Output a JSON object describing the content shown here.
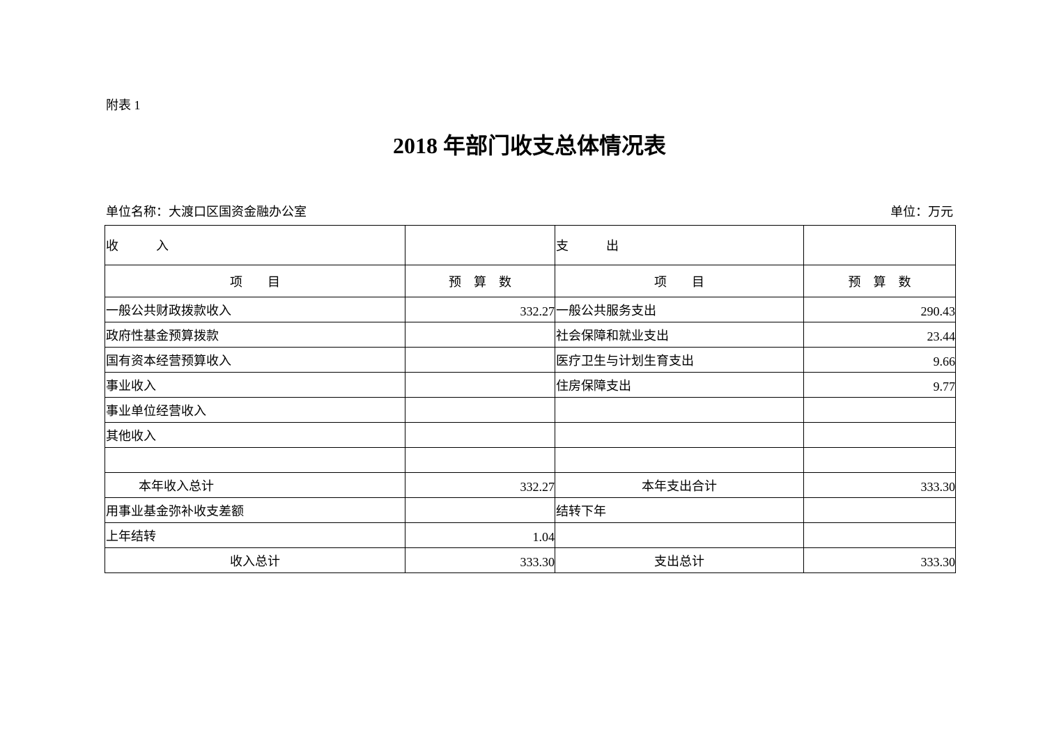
{
  "annex_label": "附表 1",
  "title": "2018 年部门收支总体情况表",
  "unit_name": "单位名称：大渡口区国资金融办公室",
  "unit": "单位：万元",
  "header": {
    "income": "收            入",
    "expense": "支            出",
    "item": "项        目",
    "budget": "预    算    数"
  },
  "rows": [
    {
      "income_item": "一般公共财政拨款收入",
      "income_value": "332.27",
      "expense_item": "一般公共服务支出",
      "expense_value": "290.43"
    },
    {
      "income_item": "政府性基金预算拨款",
      "income_value": "",
      "expense_item": "社会保障和就业支出",
      "expense_value": "23.44"
    },
    {
      "income_item": "国有资本经营预算收入",
      "income_value": "",
      "expense_item": "医疗卫生与计划生育支出",
      "expense_value": "9.66"
    },
    {
      "income_item": "事业收入",
      "income_value": "",
      "expense_item": "住房保障支出",
      "expense_value": "9.77"
    },
    {
      "income_item": "事业单位经营收入",
      "income_value": "",
      "expense_item": "",
      "expense_value": ""
    },
    {
      "income_item": "其他收入",
      "income_value": "",
      "expense_item": "",
      "expense_value": ""
    },
    {
      "income_item": "",
      "income_value": "",
      "expense_item": "",
      "expense_value": ""
    },
    {
      "income_item": "本年收入总计",
      "income_value": "332.27",
      "expense_item": "本年支出合计",
      "expense_value": "333.30"
    },
    {
      "income_item": "用事业基金弥补收支差额",
      "income_value": "",
      "expense_item": "结转下年",
      "expense_value": ""
    },
    {
      "income_item": "上年结转",
      "income_value": "1.04",
      "expense_item": "",
      "expense_value": ""
    },
    {
      "income_item": "收入总计",
      "income_value": "333.30",
      "expense_item": "支出总计",
      "expense_value": "333.30"
    }
  ]
}
